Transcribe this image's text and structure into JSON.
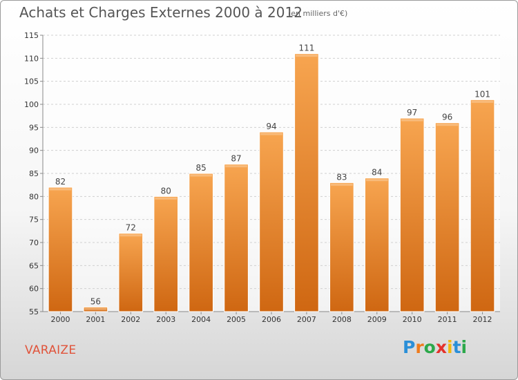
{
  "title": "Achats et Charges Externes 2000 à 2012",
  "subtitle": "(en milliers d'€)",
  "commune": "VARAIZE",
  "logo": {
    "letters": [
      "P",
      "r",
      "o",
      "x",
      "i",
      "t",
      "i"
    ],
    "colors": [
      "#2a8fd8",
      "#ee7b1c",
      "#2ca84a",
      "#e4322b",
      "#f1b80e",
      "#2a8fd8",
      "#2ca84a"
    ]
  },
  "chart_data": {
    "type": "bar",
    "categories": [
      "2000",
      "2001",
      "2002",
      "2003",
      "2004",
      "2005",
      "2006",
      "2007",
      "2008",
      "2009",
      "2010",
      "2011",
      "2012"
    ],
    "values": [
      82,
      56,
      72,
      80,
      85,
      87,
      94,
      111,
      83,
      84,
      97,
      96,
      101
    ],
    "data_labels": [
      "82",
      "56",
      "72",
      "80",
      "85",
      "87",
      "94",
      "111",
      "83",
      "84",
      "97",
      "96",
      "101"
    ],
    "ylim": [
      55,
      115
    ],
    "yticks": [
      55,
      60,
      65,
      70,
      75,
      80,
      85,
      90,
      95,
      100,
      105,
      110,
      115
    ],
    "ytick_labels": [
      "55",
      "60",
      "65",
      "70",
      "75",
      "80",
      "85",
      "90",
      "95",
      "100",
      "105",
      "110",
      "115"
    ],
    "grid": true,
    "bar_color": "#f29a3d"
  }
}
